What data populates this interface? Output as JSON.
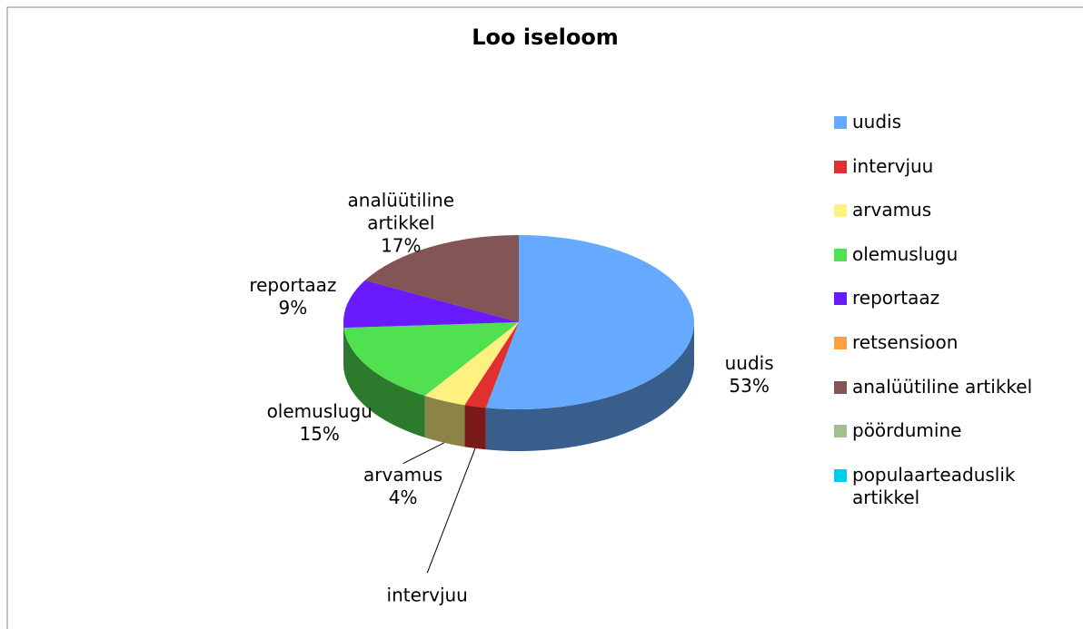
{
  "chart_data": {
    "type": "pie",
    "title": "Loo iseloom",
    "categories": [
      "uudis",
      "intervjuu",
      "arvamus",
      "olemuslugu",
      "reportaaz",
      "retsensioon",
      "analüütiline artikkel",
      "pöördumine",
      "populaarteaduslik artikkel"
    ],
    "values": [
      53,
      2,
      4,
      15,
      9,
      0,
      17,
      0,
      0
    ],
    "value_labels": [
      "53%",
      null,
      "4%",
      "15%",
      "9%",
      null,
      "17%",
      null,
      null
    ],
    "colors": [
      "#66aaff",
      "#e03030",
      "#fff080",
      "#50e050",
      "#6a1aff",
      "#ffa040",
      "#835555",
      "#a0c090",
      "#00ccee"
    ],
    "legend": "right"
  }
}
